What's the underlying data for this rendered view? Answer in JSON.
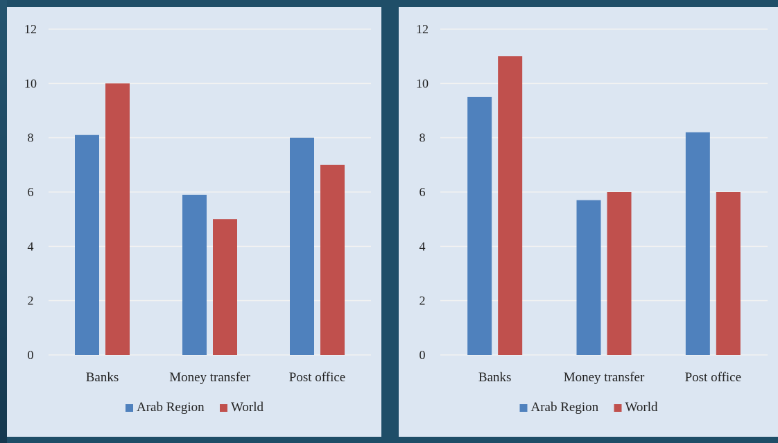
{
  "colors": {
    "arab_region": "#4f81bd",
    "world": "#c0504d",
    "plot_background": "#dce6f2",
    "grid": "#f2f2f2"
  },
  "chart_data": [
    {
      "type": "bar",
      "categories": [
        "Banks",
        "Money transfer",
        "Post office"
      ],
      "series": [
        {
          "name": "Arab Region",
          "values": [
            8.1,
            5.9,
            8.0
          ]
        },
        {
          "name": "World",
          "values": [
            10.0,
            5.0,
            7.0
          ]
        }
      ],
      "ylim": [
        0,
        12
      ],
      "yticks": [
        0,
        2,
        4,
        6,
        8,
        10,
        12
      ],
      "grid": true,
      "legend": "bottom"
    },
    {
      "type": "bar",
      "categories": [
        "Banks",
        "Money transfer",
        "Post office"
      ],
      "series": [
        {
          "name": "Arab Region",
          "values": [
            9.5,
            5.7,
            8.2
          ]
        },
        {
          "name": "World",
          "values": [
            11.0,
            6.0,
            6.0
          ]
        }
      ],
      "ylim": [
        0,
        12
      ],
      "yticks": [
        0,
        2,
        4,
        6,
        8,
        10,
        12
      ],
      "grid": true,
      "legend": "bottom"
    }
  ]
}
